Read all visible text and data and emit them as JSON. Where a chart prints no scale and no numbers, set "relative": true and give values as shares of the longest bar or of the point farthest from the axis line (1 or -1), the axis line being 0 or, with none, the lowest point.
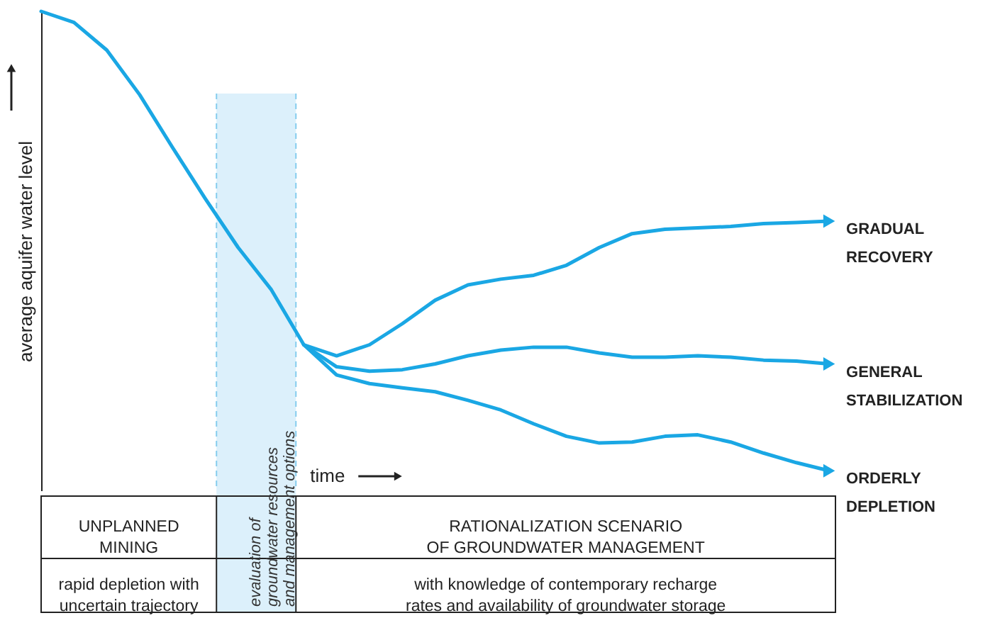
{
  "chart_data": {
    "type": "line",
    "relative": true,
    "ylabel": "average aquifer water level",
    "xlabel": "time",
    "tick_labels": false,
    "grid": false,
    "legend": "right",
    "marker": "none",
    "line_style": "solid",
    "categories": [
      null,
      null,
      null,
      null,
      null,
      null,
      null,
      null,
      null,
      null,
      null,
      null,
      null,
      null,
      null,
      null,
      null,
      null,
      null,
      null,
      null,
      null,
      null,
      null,
      null
    ],
    "series": [
      {
        "name": "GRADUAL RECOVERY",
        "color": "#1aa7e4",
        "values": [
          null,
          null,
          null,
          null,
          null,
          null,
          null,
          null,
          0.304,
          0.281,
          0.304,
          0.348,
          0.397,
          0.429,
          0.441,
          0.449,
          0.47,
          0.507,
          0.536,
          0.545,
          0.548,
          0.551,
          0.557,
          0.559,
          0.562
        ]
      },
      {
        "name": "GENERAL STABILIZATION",
        "color": "#1aa7e4",
        "values": [
          1.0,
          0.977,
          0.919,
          0.826,
          0.716,
          0.609,
          0.507,
          0.42,
          0.304,
          0.258,
          0.249,
          0.252,
          0.264,
          0.281,
          0.293,
          0.299,
          0.299,
          0.287,
          0.278,
          0.278,
          0.281,
          0.278,
          0.272,
          0.27,
          0.264
        ]
      },
      {
        "name": "ORDERLY DEPLETION",
        "color": "#1aa7e4",
        "values": [
          null,
          null,
          null,
          null,
          null,
          null,
          null,
          null,
          0.304,
          0.241,
          0.223,
          0.214,
          0.206,
          0.188,
          0.168,
          0.139,
          0.113,
          0.099,
          0.101,
          0.113,
          0.116,
          0.101,
          0.078,
          0.058,
          0.041
        ]
      }
    ],
    "annotations": [
      "evaluation of groundwater resources and management options",
      "UNPLANNED MINING",
      "rapid depletion with uncertain trajectory",
      "RATIONALIZATION SCENARIO OF GROUNDWATER MANAGEMENT",
      "with knowledge of contemporary recharge rates and availability of groundwater storage"
    ]
  }
}
